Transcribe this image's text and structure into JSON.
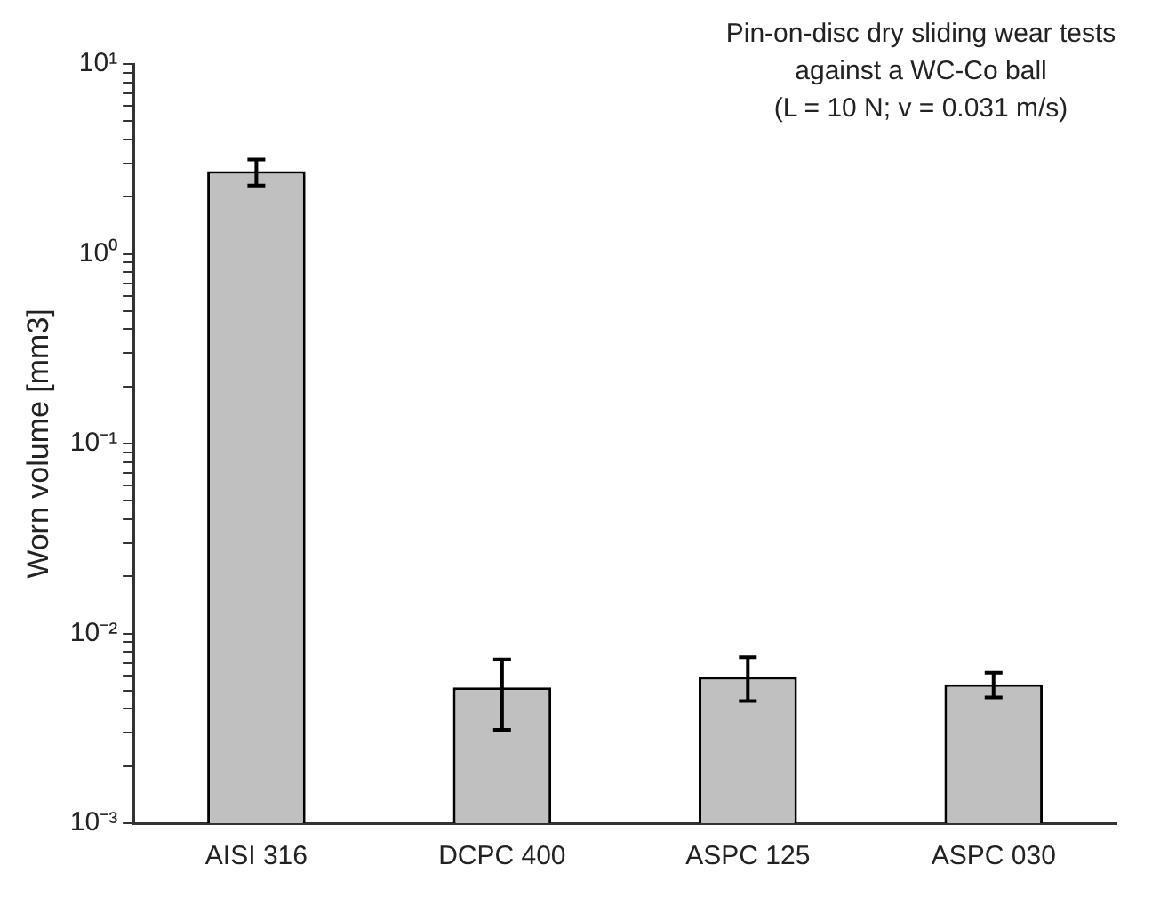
{
  "chart_data": {
    "type": "bar",
    "title": "Pin-on-disc dry sliding wear tests\nagainst a WC-Co ball\n(L = 10 N; v = 0.031 m/s)",
    "ylabel": "Worn volume [mm3]",
    "categories": [
      "AISI 316",
      "DCPC 400",
      "ASPC 125",
      "ASPC 030"
    ],
    "values": [
      2.73,
      0.0052,
      0.0059,
      0.0054
    ],
    "errors": [
      [
        2.29,
        3.14
      ],
      [
        0.0031,
        0.0073
      ],
      [
        0.0044,
        0.0075
      ],
      [
        0.0046,
        0.0062
      ]
    ],
    "color": "#c0c0c0",
    "log": true,
    "grid": false,
    "legend": false,
    "ylim": [
      0.001,
      10
    ],
    "yticks": [
      {
        "value": 0.001,
        "label": "10⁻³"
      },
      {
        "value": 0.002,
        "label": null
      },
      {
        "value": 0.003,
        "label": null
      },
      {
        "value": 0.004,
        "label": null
      },
      {
        "value": 0.005,
        "label": null
      },
      {
        "value": 0.006,
        "label": null
      },
      {
        "value": 0.007,
        "label": null
      },
      {
        "value": 0.008,
        "label": null
      },
      {
        "value": 0.009,
        "label": null
      },
      {
        "value": 0.01,
        "label": "10⁻²"
      },
      {
        "value": 0.02,
        "label": null
      },
      {
        "value": 0.03,
        "label": null
      },
      {
        "value": 0.04,
        "label": null
      },
      {
        "value": 0.05,
        "label": null
      },
      {
        "value": 0.06,
        "label": null
      },
      {
        "value": 0.07,
        "label": null
      },
      {
        "value": 0.08,
        "label": null
      },
      {
        "value": 0.09,
        "label": null
      },
      {
        "value": 0.1,
        "label": "10⁻¹"
      },
      {
        "value": 0.2,
        "label": null
      },
      {
        "value": 0.3,
        "label": null
      },
      {
        "value": 0.4,
        "label": null
      },
      {
        "value": 0.5,
        "label": null
      },
      {
        "value": 0.6,
        "label": null
      },
      {
        "value": 0.7,
        "label": null
      },
      {
        "value": 0.8,
        "label": null
      },
      {
        "value": 0.9,
        "label": null
      },
      {
        "value": 1,
        "label": "10⁰"
      },
      {
        "value": 2,
        "label": null
      },
      {
        "value": 3,
        "label": null
      },
      {
        "value": 4,
        "label": null
      },
      {
        "value": 5,
        "label": null
      },
      {
        "value": 6,
        "label": null
      },
      {
        "value": 7,
        "label": null
      },
      {
        "value": 8,
        "label": null
      },
      {
        "value": 9,
        "label": null
      },
      {
        "value": 10,
        "label": "10¹"
      }
    ]
  }
}
